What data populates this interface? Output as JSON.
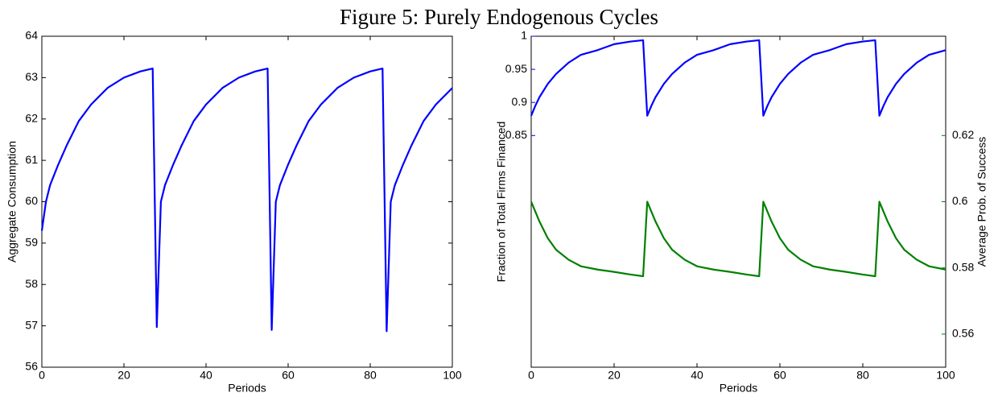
{
  "title": "Figure 5: Purely Endogenous Cycles",
  "chart_data": [
    {
      "type": "line",
      "xlabel": "Periods",
      "ylabel": "Aggregate Consumption",
      "x": [
        0,
        1,
        2,
        4,
        6,
        9,
        12,
        16,
        20,
        24,
        27,
        28,
        29,
        30,
        32,
        34,
        37,
        40,
        44,
        48,
        52,
        55,
        56,
        57,
        58,
        60,
        62,
        65,
        68,
        72,
        76,
        80,
        83,
        84,
        85,
        86,
        88,
        90,
        93,
        96,
        100
      ],
      "series": [
        {
          "color": "#0000ff",
          "values": [
            59.3,
            60.0,
            60.4,
            60.9,
            61.35,
            61.95,
            62.35,
            62.75,
            63.0,
            63.15,
            63.22,
            56.97,
            60.0,
            60.4,
            60.9,
            61.35,
            61.95,
            62.35,
            62.75,
            63.0,
            63.15,
            63.22,
            56.9,
            60.0,
            60.4,
            60.9,
            61.35,
            61.95,
            62.35,
            62.75,
            63.0,
            63.15,
            63.22,
            56.87,
            60.0,
            60.4,
            60.9,
            61.35,
            61.95,
            62.35,
            62.75
          ]
        }
      ],
      "xlim": [
        0,
        100
      ],
      "xticks": [
        0,
        20,
        40,
        60,
        80,
        100
      ],
      "ylim": [
        56,
        64
      ],
      "yticks": [
        56,
        57,
        58,
        59,
        60,
        61,
        62,
        63,
        64
      ]
    },
    {
      "type": "line",
      "xlabel": "Periods",
      "ylabel": "Fraction of Total Firms Financed",
      "y2label": "Average Prob. of Success",
      "ylabel_color": "#0000ff",
      "y2label_color": "#008000",
      "x": [
        0,
        1,
        2,
        4,
        6,
        9,
        12,
        16,
        20,
        24,
        27,
        28,
        29,
        30,
        32,
        34,
        37,
        40,
        44,
        48,
        52,
        55,
        56,
        57,
        58,
        60,
        62,
        65,
        68,
        72,
        76,
        80,
        83,
        84,
        85,
        86,
        88,
        90,
        93,
        96,
        100
      ],
      "series": [
        {
          "color": "#0000ff",
          "values": [
            0.88,
            0.895,
            0.908,
            0.928,
            0.943,
            0.96,
            0.972,
            0.979,
            0.988,
            0.992,
            0.994,
            0.88,
            0.895,
            0.908,
            0.928,
            0.943,
            0.96,
            0.972,
            0.979,
            0.988,
            0.992,
            0.994,
            0.88,
            0.895,
            0.908,
            0.928,
            0.943,
            0.96,
            0.972,
            0.979,
            0.988,
            0.992,
            0.994,
            0.88,
            0.895,
            0.908,
            0.928,
            0.943,
            0.96,
            0.972,
            0.979
          ]
        },
        {
          "color": "#008000",
          "axis": "y2",
          "values": [
            0.6,
            0.597,
            0.594,
            0.589,
            0.5855,
            0.5825,
            0.5805,
            0.5795,
            0.5788,
            0.578,
            0.5775,
            0.6,
            0.597,
            0.594,
            0.589,
            0.5855,
            0.5825,
            0.5805,
            0.5795,
            0.5788,
            0.578,
            0.5775,
            0.6,
            0.597,
            0.594,
            0.589,
            0.5855,
            0.5825,
            0.5805,
            0.5795,
            0.5788,
            0.578,
            0.5775,
            0.6,
            0.597,
            0.594,
            0.589,
            0.5855,
            0.5825,
            0.5805,
            0.5795
          ]
        }
      ],
      "xlim": [
        0,
        100
      ],
      "xticks": [
        0,
        20,
        40,
        60,
        80,
        100
      ],
      "ylim": [
        0.5,
        1
      ],
      "yticks": [
        0.85,
        0.9,
        0.95,
        1
      ],
      "y2lim": [
        0.55,
        0.65
      ],
      "y2ticks": [
        0.56,
        0.58,
        0.6,
        0.62
      ]
    }
  ]
}
